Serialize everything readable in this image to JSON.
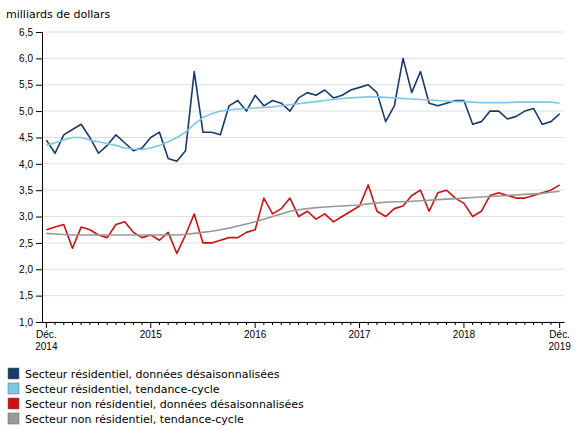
{
  "chart_data": {
    "type": "line",
    "y_label": "milliards de dollars",
    "categories": [
      "Déc.\n2014",
      null,
      null,
      null,
      null,
      null,
      null,
      null,
      null,
      null,
      null,
      null,
      "2015",
      null,
      null,
      null,
      null,
      null,
      null,
      null,
      null,
      null,
      null,
      null,
      "2016",
      null,
      null,
      null,
      null,
      null,
      null,
      null,
      null,
      null,
      null,
      null,
      "2017",
      null,
      null,
      null,
      null,
      null,
      null,
      null,
      null,
      null,
      null,
      null,
      "2018",
      null,
      null,
      null,
      null,
      null,
      null,
      null,
      null,
      null,
      null,
      "Déc.\n2019"
    ],
    "series": [
      {
        "name": "Secteur résidentiel, données désaisonnalisées",
        "color": "#1a3a6b",
        "values": [
          4.45,
          4.2,
          4.55,
          4.65,
          4.75,
          4.5,
          4.2,
          4.35,
          4.55,
          4.4,
          4.25,
          4.3,
          4.5,
          4.6,
          4.1,
          4.05,
          4.25,
          5.75,
          4.6,
          4.6,
          4.55,
          5.1,
          5.2,
          5.0,
          5.3,
          5.1,
          5.2,
          5.15,
          5.0,
          5.25,
          5.35,
          5.3,
          5.4,
          5.25,
          5.3,
          5.4,
          5.45,
          5.5,
          5.35,
          4.8,
          5.1,
          6.0,
          5.35,
          5.75,
          5.15,
          5.1,
          5.15,
          5.2,
          5.2,
          4.75,
          4.8,
          5.0,
          5.0,
          4.85,
          4.9,
          5.0,
          5.05,
          4.75,
          4.8,
          4.95
        ]
      },
      {
        "name": "Secteur résidentiel, tendance-cycle",
        "color": "#7ec8e3",
        "values": [
          4.35,
          4.4,
          4.45,
          4.5,
          4.5,
          4.45,
          4.42,
          4.38,
          4.35,
          4.3,
          4.28,
          4.27,
          4.3,
          4.35,
          4.42,
          4.5,
          4.6,
          4.75,
          4.88,
          4.95,
          5.0,
          5.02,
          5.04,
          5.05,
          5.06,
          5.07,
          5.08,
          5.1,
          5.12,
          5.14,
          5.16,
          5.18,
          5.2,
          5.22,
          5.24,
          5.25,
          5.26,
          5.27,
          5.27,
          5.26,
          5.25,
          5.24,
          5.23,
          5.22,
          5.21,
          5.2,
          5.19,
          5.18,
          5.18,
          5.17,
          5.16,
          5.16,
          5.16,
          5.16,
          5.17,
          5.17,
          5.17,
          5.17,
          5.17,
          5.15
        ]
      },
      {
        "name": "Secteur non résidentiel, données désaisonnalisées",
        "color": "#cc1111",
        "values": [
          2.75,
          2.8,
          2.85,
          2.4,
          2.8,
          2.75,
          2.65,
          2.6,
          2.85,
          2.9,
          2.7,
          2.6,
          2.65,
          2.55,
          2.7,
          2.3,
          2.65,
          3.05,
          2.5,
          2.5,
          2.55,
          2.6,
          2.6,
          2.7,
          2.75,
          3.35,
          3.05,
          3.15,
          3.35,
          3.0,
          3.1,
          2.95,
          3.05,
          2.9,
          3.0,
          3.1,
          3.2,
          3.6,
          3.1,
          3.0,
          3.15,
          3.2,
          3.4,
          3.5,
          3.1,
          3.45,
          3.5,
          3.35,
          3.25,
          3.0,
          3.1,
          3.4,
          3.45,
          3.4,
          3.35,
          3.35,
          3.4,
          3.45,
          3.5,
          3.6
        ]
      },
      {
        "name": "Secteur non résidentiel, tendance-cycle",
        "color": "#999999",
        "values": [
          2.68,
          2.67,
          2.66,
          2.65,
          2.65,
          2.65,
          2.65,
          2.65,
          2.65,
          2.65,
          2.65,
          2.65,
          2.65,
          2.65,
          2.65,
          2.65,
          2.66,
          2.68,
          2.7,
          2.72,
          2.75,
          2.78,
          2.82,
          2.86,
          2.9,
          2.95,
          3.0,
          3.05,
          3.1,
          3.13,
          3.15,
          3.17,
          3.18,
          3.19,
          3.2,
          3.21,
          3.22,
          3.24,
          3.26,
          3.27,
          3.28,
          3.28,
          3.29,
          3.3,
          3.31,
          3.32,
          3.33,
          3.34,
          3.35,
          3.36,
          3.37,
          3.38,
          3.39,
          3.4,
          3.41,
          3.42,
          3.43,
          3.44,
          3.46,
          3.48
        ]
      }
    ],
    "ylim": [
      1.0,
      6.5
    ],
    "yticks": [
      {
        "value": 1.0,
        "label": "1,0"
      },
      {
        "value": 1.5,
        "label": "1,5"
      },
      {
        "value": 2.0,
        "label": "2,0"
      },
      {
        "value": 2.5,
        "label": "2,5"
      },
      {
        "value": 3.0,
        "label": "3,0"
      },
      {
        "value": 3.5,
        "label": "3,5"
      },
      {
        "value": 4.0,
        "label": "4,0"
      },
      {
        "value": 4.5,
        "label": "4,5"
      },
      {
        "value": 5.0,
        "label": "5,0"
      },
      {
        "value": 5.5,
        "label": "5,5"
      },
      {
        "value": 6.0,
        "label": "6,0"
      },
      {
        "value": 6.5,
        "label": "6,5"
      }
    ],
    "grid": true,
    "legend": "bottom"
  }
}
